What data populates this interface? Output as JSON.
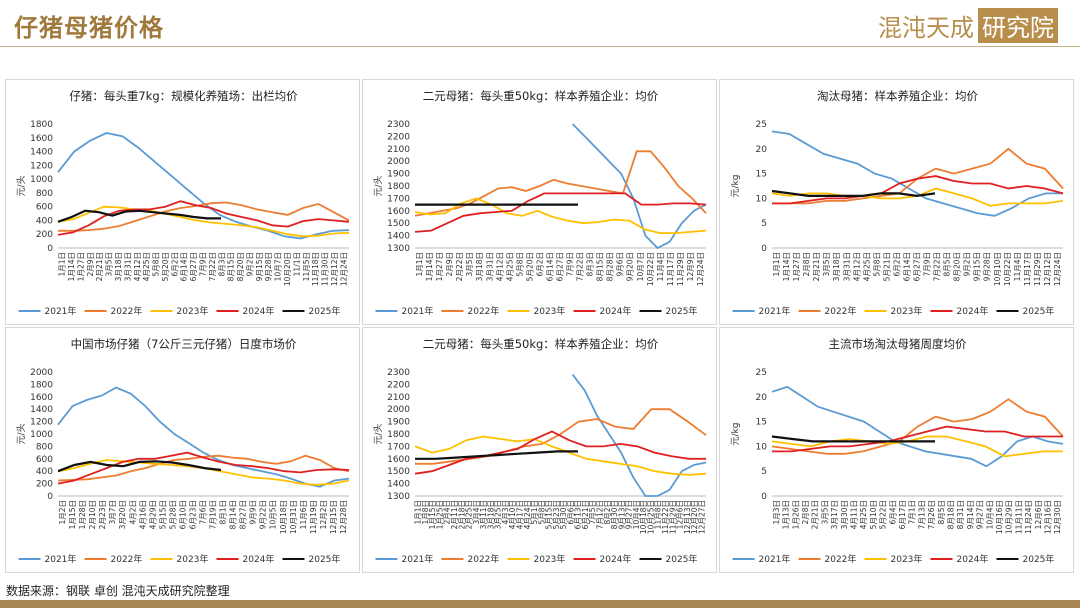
{
  "header": {
    "title": "仔猪母猪价格",
    "brand_text": "混沌天成",
    "brand_boxed": "研究院"
  },
  "footer": {
    "source": "数据来源：钢联 卓创 混沌天成研究院整理"
  },
  "colors": {
    "2021年": "#5b9bd5",
    "2022年": "#ed7d31",
    "2023年": "#ffc000",
    "2024年": "#e02020",
    "2025年": "#111111"
  },
  "chart_data": [
    {
      "type": "line",
      "title": "仔猪：每头重7kg：规模化养殖场：出栏均价",
      "ylabel": "元/头",
      "ylim": [
        0,
        1800
      ],
      "yticks": [
        0,
        200,
        400,
        600,
        800,
        1000,
        1200,
        1400,
        1600,
        1800
      ],
      "xticks": [
        "1月1日",
        "1月14日",
        "1月27日",
        "2月9日",
        "2月21日",
        "3月5日",
        "3月18日",
        "3月31日",
        "4月12日",
        "4月25日",
        "5月8日",
        "5月20日",
        "6月2日",
        "6月14日",
        "6月27日",
        "7月9日",
        "7月22日",
        "8月3日",
        "8月15日",
        "8月20日",
        "9月2日",
        "9月15日",
        "9月28日",
        "10月7日",
        "10月20日",
        "11/1日",
        "11月5日",
        "11月18日",
        "11月30日",
        "12月12日",
        "12月24日"
      ],
      "series": [
        {
          "name": "2021年",
          "values": [
            1100,
            1400,
            1560,
            1670,
            1620,
            1450,
            1250,
            1050,
            850,
            650,
            480,
            380,
            310,
            250,
            170,
            140,
            200,
            250,
            260
          ]
        },
        {
          "name": "2022年",
          "values": [
            250,
            250,
            260,
            280,
            320,
            390,
            460,
            530,
            580,
            610,
            650,
            660,
            620,
            560,
            520,
            480,
            580,
            640,
            520,
            400
          ]
        },
        {
          "name": "2023年",
          "values": [
            380,
            420,
            510,
            600,
            590,
            560,
            540,
            500,
            450,
            400,
            370,
            350,
            330,
            300,
            250,
            200,
            170,
            180,
            210,
            220
          ]
        },
        {
          "name": "2024年",
          "values": [
            190,
            230,
            330,
            460,
            540,
            560,
            560,
            600,
            680,
            620,
            580,
            500,
            450,
            400,
            330,
            310,
            390,
            420,
            400,
            380
          ]
        },
        {
          "name": "2025年",
          "values": [
            380,
            450,
            540,
            520,
            470,
            530,
            540,
            520,
            500,
            480,
            450,
            430,
            430
          ]
        }
      ]
    },
    {
      "type": "line",
      "title": "二元母猪：每头重50kg：样本养殖企业：均价",
      "ylabel": "元/头",
      "ylim": [
        1300,
        2300
      ],
      "yticks": [
        1300,
        1400,
        1500,
        1600,
        1700,
        1800,
        1900,
        2000,
        2100,
        2200,
        2300
      ],
      "xticks": [
        "1月1日",
        "1月14日",
        "1月27日",
        "2月9日",
        "2月22日",
        "3月5日",
        "3月18日",
        "3月31日",
        "4月12日",
        "4月25日",
        "5月8日",
        "5月20日",
        "6月2日",
        "6月14日",
        "6月27日",
        "7月9日",
        "7月22日",
        "8月3日",
        "8月15日",
        "8月28日",
        "9月6日",
        "9月20日",
        "10月7日",
        "10月22日",
        "11月4日",
        "11月17日",
        "11月29日",
        "12月9日",
        "12月24日"
      ],
      "series": [
        {
          "name": "2021年",
          "values": [
            null,
            null,
            null,
            null,
            null,
            null,
            null,
            null,
            null,
            null,
            null,
            null,
            null,
            2300,
            2200,
            2100,
            2000,
            1900,
            1700,
            1400,
            1300,
            1350,
            1500,
            1600,
            1650
          ]
        },
        {
          "name": "2022年",
          "values": [
            1560,
            1580,
            1600,
            1620,
            1660,
            1720,
            1780,
            1790,
            1760,
            1800,
            1850,
            1820,
            1800,
            1780,
            1760,
            1740,
            2080,
            2080,
            1950,
            1800,
            1700,
            1580
          ]
        },
        {
          "name": "2023年",
          "values": [
            1590,
            1570,
            1580,
            1660,
            1700,
            1650,
            1580,
            1560,
            1600,
            1550,
            1520,
            1500,
            1510,
            1530,
            1520,
            1450,
            1420,
            1420,
            1430,
            1440
          ]
        },
        {
          "name": "2024年",
          "values": [
            1430,
            1440,
            1500,
            1560,
            1580,
            1590,
            1600,
            1680,
            1740,
            1740,
            1740,
            1740,
            1740,
            1740,
            1650,
            1650,
            1660,
            1660,
            1650
          ]
        },
        {
          "name": "2025年",
          "values": [
            1650,
            1650,
            1650,
            1650,
            1650,
            1650,
            1650,
            1650,
            1650,
            1650,
            1650,
            1650,
            1650,
            1650
          ]
        }
      ]
    },
    {
      "type": "line",
      "title": "淘汰母猪：样本养殖企业：均价",
      "ylabel": "元/kg",
      "ylim": [
        0,
        25
      ],
      "yticks": [
        0,
        5,
        10,
        15,
        20,
        25
      ],
      "xticks": [
        "1月1日",
        "1月14日",
        "1月27日",
        "2月8日",
        "2月21日",
        "3月5日",
        "3月18日",
        "3月31日",
        "4月12日",
        "4月25日",
        "5月8日",
        "5月21日",
        "6月2日",
        "6月14日",
        "6月27日",
        "7月9日",
        "7月22日",
        "8月5日",
        "8月20日",
        "9月2日",
        "9月15日",
        "9月28日",
        "10月10日",
        "10月22日",
        "11月4日",
        "11月17日",
        "11月29日",
        "12月12日",
        "12月24日"
      ],
      "series": [
        {
          "name": "2021年",
          "values": [
            23.5,
            23,
            21,
            19,
            18,
            17,
            15,
            14,
            12,
            10,
            9,
            8,
            7,
            6.5,
            8,
            10,
            11,
            11
          ]
        },
        {
          "name": "2022年",
          "values": [
            9,
            9,
            9,
            9.5,
            9.5,
            10,
            10.5,
            11,
            14,
            16,
            15,
            16,
            17,
            20,
            17,
            16,
            12
          ]
        },
        {
          "name": "2023年",
          "values": [
            11,
            10.5,
            11,
            11,
            10.5,
            10.5,
            10,
            10,
            10.5,
            12,
            11,
            10,
            8.5,
            9,
            9,
            9,
            9.5
          ]
        },
        {
          "name": "2024年",
          "values": [
            9,
            9,
            9.5,
            10,
            10,
            10.5,
            11,
            13,
            14,
            14.5,
            13.5,
            13,
            13,
            12,
            12.5,
            12,
            11
          ]
        },
        {
          "name": "2025年",
          "values": [
            11.5,
            11,
            10.5,
            10.5,
            10.5,
            10.5,
            11,
            11,
            10.5,
            11
          ]
        }
      ]
    },
    {
      "type": "line",
      "title": "中国市场仔猪（7公斤三元仔猪）日度市场价",
      "ylabel": "元/头",
      "ylim": [
        0,
        2000
      ],
      "yticks": [
        0,
        200,
        400,
        600,
        800,
        1000,
        1200,
        1400,
        1600,
        1800,
        2000
      ],
      "xticks": [
        "1月2日",
        "1月15日",
        "1月28日",
        "2月10日",
        "2月23日",
        "3月7日",
        "3月20日",
        "4月2日",
        "4月16日",
        "4月29日",
        "5月15日",
        "5月28日",
        "6月10日",
        "6月23日",
        "7月6日",
        "7月19日",
        "8月1日",
        "8月14日",
        "8月27日",
        "9月9日",
        "9月22日",
        "10月5日",
        "10月18日",
        "10月31日",
        "11月6日",
        "11月19日",
        "12月2日",
        "12月15日",
        "12月28日"
      ],
      "series": [
        {
          "name": "2021年",
          "values": [
            1150,
            1450,
            1550,
            1620,
            1750,
            1650,
            1450,
            1200,
            1000,
            850,
            700,
            580,
            500,
            450,
            400,
            350,
            280,
            200,
            150,
            250,
            280
          ]
        },
        {
          "name": "2022年",
          "values": [
            250,
            260,
            270,
            300,
            330,
            400,
            450,
            520,
            580,
            600,
            630,
            650,
            620,
            600,
            550,
            520,
            560,
            650,
            580,
            450,
            400
          ]
        },
        {
          "name": "2023年",
          "values": [
            400,
            450,
            520,
            580,
            560,
            540,
            520,
            500,
            480,
            450,
            400,
            350,
            300,
            280,
            250,
            200,
            180,
            200,
            250
          ]
        },
        {
          "name": "2024年",
          "values": [
            200,
            250,
            350,
            450,
            550,
            600,
            600,
            650,
            700,
            620,
            550,
            500,
            480,
            450,
            400,
            380,
            420,
            430,
            420
          ]
        },
        {
          "name": "2025年",
          "values": [
            400,
            500,
            550,
            500,
            480,
            550,
            560,
            540,
            500,
            450,
            420
          ]
        }
      ]
    },
    {
      "type": "line",
      "title": "二元母猪：每头重50kg：样本养殖企业：均价",
      "ylabel": "元/头",
      "ylim": [
        1300,
        2300
      ],
      "yticks": [
        1300,
        1400,
        1500,
        1600,
        1700,
        1800,
        1900,
        2000,
        2100,
        2200,
        2300
      ],
      "xticks": [
        "1月1日",
        "1月8日",
        "1月15日",
        "1月25日",
        "2月4日",
        "2月11日",
        "2月18日",
        "2月25日",
        "3月4日",
        "3月11日",
        "3月18日",
        "3月25日",
        "4月3日",
        "4月10日",
        "4月17日",
        "4月24日",
        "5月1日",
        "5月8日",
        "5月15日",
        "5月23日",
        "5月30日",
        "6月6日",
        "6月13日",
        "6月21日",
        "7月5日",
        "7月12日",
        "8月2日",
        "8月30日",
        "9月13日",
        "9月27日",
        "10月4日",
        "10月18日",
        "10月25日",
        "11月8日",
        "11月22日",
        "11月29日",
        "12月6日",
        "12月13日",
        "12月20日",
        "12月27日"
      ],
      "series": [
        {
          "name": "2021年",
          "values": [
            null,
            null,
            null,
            null,
            null,
            null,
            null,
            null,
            null,
            null,
            null,
            null,
            null,
            2280,
            2150,
            1950,
            1800,
            1650,
            1450,
            1300,
            1200,
            1350,
            1500,
            1550,
            1570
          ]
        },
        {
          "name": "2022年",
          "values": [
            1560,
            1560,
            1580,
            1600,
            1620,
            1660,
            1700,
            1720,
            1800,
            1900,
            1920,
            1860,
            1840,
            2000,
            2000,
            1900,
            1790
          ]
        },
        {
          "name": "2023年",
          "values": [
            1700,
            1650,
            1680,
            1750,
            1780,
            1760,
            1740,
            1760,
            1700,
            1650,
            1600,
            1580,
            1560,
            1540,
            1500,
            1480,
            1470,
            1480
          ]
        },
        {
          "name": "2024年",
          "values": [
            1480,
            1500,
            1550,
            1600,
            1620,
            1650,
            1680,
            1760,
            1820,
            1750,
            1700,
            1700,
            1720,
            1700,
            1650,
            1620,
            1600,
            1600
          ]
        },
        {
          "name": "2025年",
          "values": [
            1600,
            1600,
            1610,
            1620,
            1630,
            1640,
            1650,
            1660,
            1660
          ]
        }
      ]
    },
    {
      "type": "line",
      "title": "主流市场淘汰母猪周度均价",
      "ylabel": "元/kg",
      "ylim": [
        0,
        25
      ],
      "yticks": [
        0,
        5,
        10,
        15,
        20,
        25
      ],
      "xticks": [
        "1月3日",
        "1月13日",
        "1月26日",
        "2月8日",
        "2月21日",
        "3月5日",
        "3月17日",
        "3月30日",
        "4月11日",
        "4月25日",
        "5月10日",
        "5月22日",
        "6月4日",
        "6月17日",
        "7月1日",
        "7月13日",
        "7月26日",
        "8月5日",
        "8月18日",
        "8月31日",
        "9月14日",
        "9月27日",
        "10月4日",
        "10月16日",
        "10月29日",
        "11月11日",
        "11月24日",
        "12月6日",
        "12月16日",
        "12月30日"
      ],
      "series": [
        {
          "name": "2021年",
          "values": [
            21,
            22,
            20,
            18,
            17,
            16,
            15,
            13,
            11,
            10,
            9,
            8.5,
            8,
            7.5,
            6,
            8,
            11,
            12,
            11,
            10.5
          ]
        },
        {
          "name": "2022年",
          "values": [
            10,
            9.5,
            9,
            8.5,
            8.5,
            9,
            10,
            11,
            14,
            16,
            15,
            15.5,
            17,
            19.5,
            17,
            16,
            12
          ]
        },
        {
          "name": "2023年",
          "values": [
            11,
            10.5,
            10,
            11,
            11.5,
            11,
            10.5,
            11,
            12,
            12,
            11,
            10,
            8,
            8.5,
            9,
            9
          ]
        },
        {
          "name": "2024年",
          "values": [
            9,
            9,
            9.5,
            10,
            10,
            10.5,
            11,
            12,
            13,
            14,
            13.5,
            13,
            13,
            12,
            12,
            12
          ]
        },
        {
          "name": "2025年",
          "values": [
            12,
            11.5,
            11,
            11,
            11,
            11,
            11,
            11,
            11
          ]
        }
      ]
    }
  ]
}
